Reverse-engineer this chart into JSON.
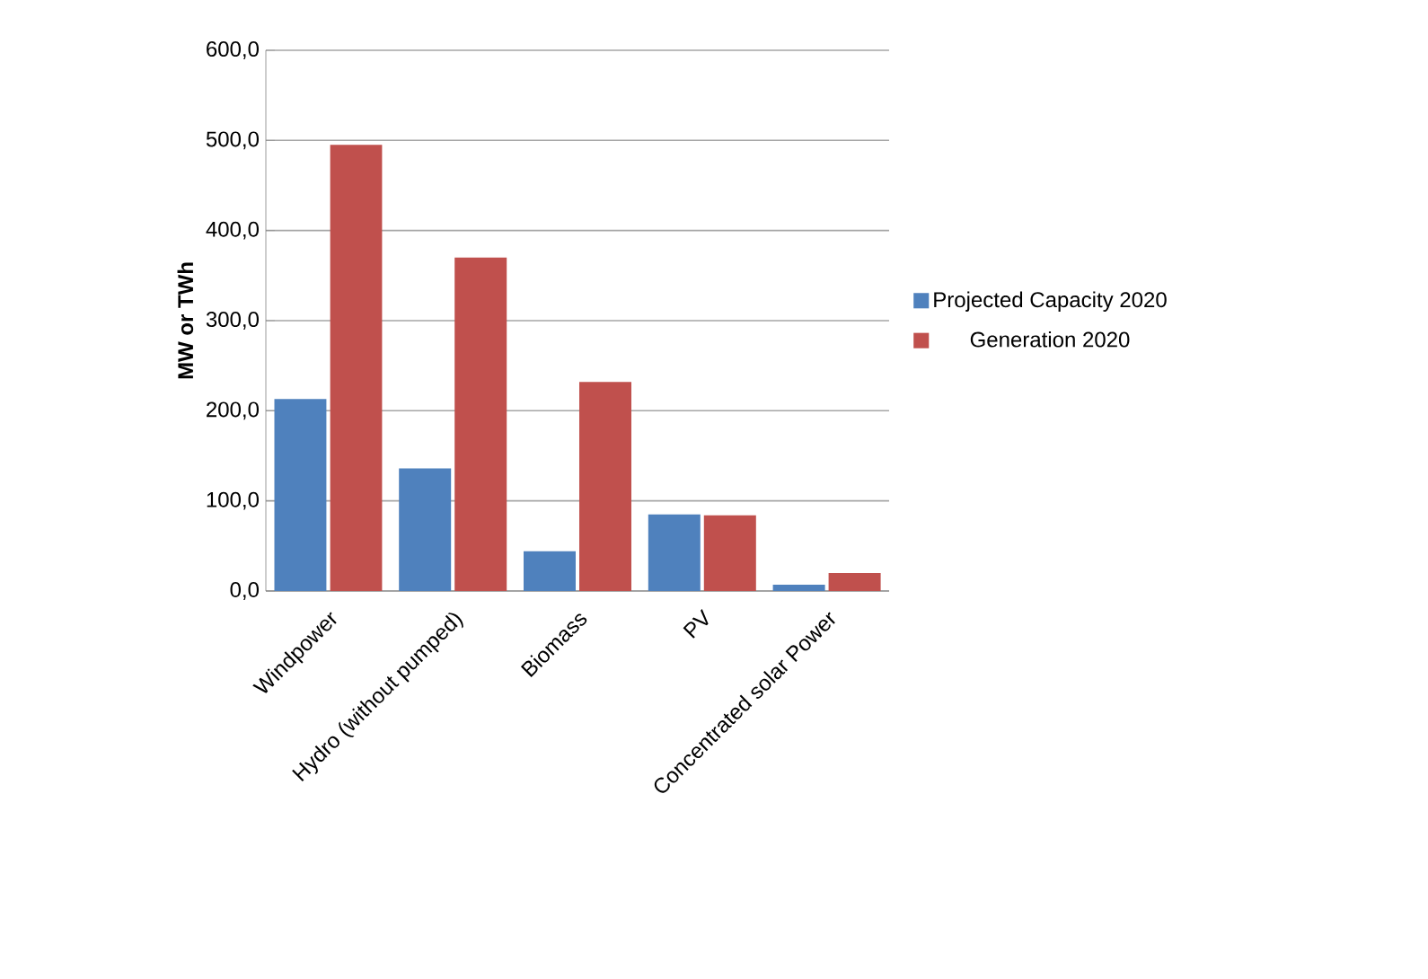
{
  "chart_data": {
    "type": "bar",
    "ylabel": "MW or TWh",
    "categories": [
      "Windpower",
      "Hydro (without pumped)",
      "Biomass",
      "PV",
      "Concentrated solar Power"
    ],
    "series": [
      {
        "name": "Projected Capacity 2020",
        "color": "#4f81bd",
        "values": [
          213,
          136,
          44,
          85,
          7
        ]
      },
      {
        "name": "Generation 2020",
        "color": "#c0504d",
        "values": [
          495,
          370,
          232,
          84,
          20
        ]
      }
    ],
    "ylim": [
      0,
      600
    ],
    "yticks": [
      {
        "value": 0,
        "label": "0,0"
      },
      {
        "value": 100,
        "label": "100,0"
      },
      {
        "value": 200,
        "label": "200,0"
      },
      {
        "value": 300,
        "label": "300,0"
      },
      {
        "value": 400,
        "label": "400,0"
      },
      {
        "value": 500,
        "label": "500,0"
      },
      {
        "value": 600,
        "label": "600,0"
      }
    ],
    "grid": "y",
    "legend": "right"
  }
}
